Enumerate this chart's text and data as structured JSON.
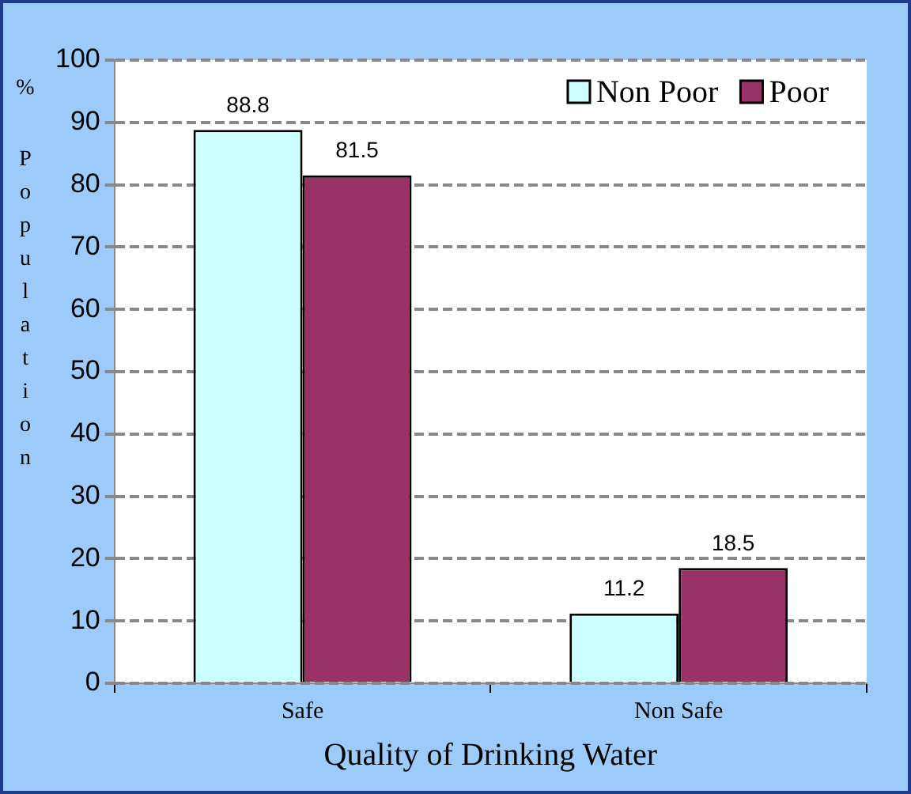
{
  "chart_data": {
    "type": "bar",
    "xlabel": "Quality of Drinking Water",
    "ylabel": "% Population",
    "categories": [
      "Safe",
      "Non Safe"
    ],
    "series": [
      {
        "name": "Non Poor",
        "color": "#ccffff",
        "values": [
          88.8,
          11.2
        ]
      },
      {
        "name": "Poor",
        "color": "#993366",
        "values": [
          81.5,
          18.5
        ]
      }
    ],
    "ylim": [
      0,
      100
    ],
    "yticks": [
      0,
      10,
      20,
      30,
      40,
      50,
      60,
      70,
      80,
      90,
      100
    ],
    "grid": "y",
    "legend": "top right",
    "data_labels": true
  }
}
